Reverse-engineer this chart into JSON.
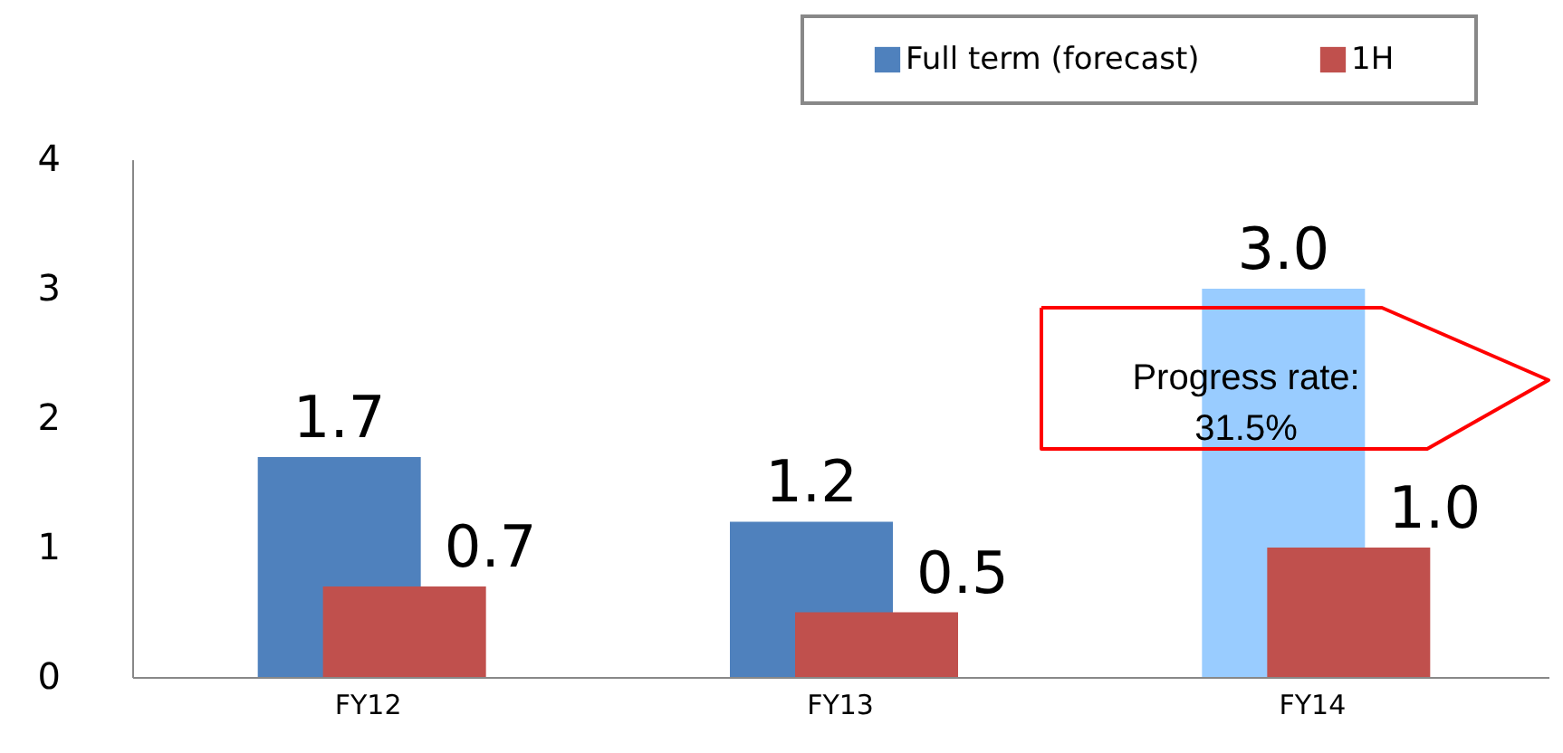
{
  "chart_data": {
    "type": "bar",
    "categories": [
      "FY12",
      "FY13",
      "FY14"
    ],
    "series": [
      {
        "name": "Full term (forecast)",
        "color": "#4f81bd",
        "colors": [
          "#4f81bd",
          "#4f81bd",
          "#99ccff"
        ],
        "values": [
          1.7,
          1.2,
          3.0
        ],
        "value_labels": [
          "1.7",
          "1.2",
          "3.0"
        ]
      },
      {
        "name": "1H",
        "color": "#c0504d",
        "values": [
          0.7,
          0.5,
          1.0
        ],
        "value_labels": [
          "0.7",
          "0.5",
          "1.0"
        ]
      }
    ],
    "ylim": [
      0,
      4
    ],
    "yticks": [
      0,
      1,
      2,
      3,
      4
    ],
    "grid": false,
    "legend": "top right",
    "annotations": [
      "Progress rate:\n31.5%"
    ]
  }
}
